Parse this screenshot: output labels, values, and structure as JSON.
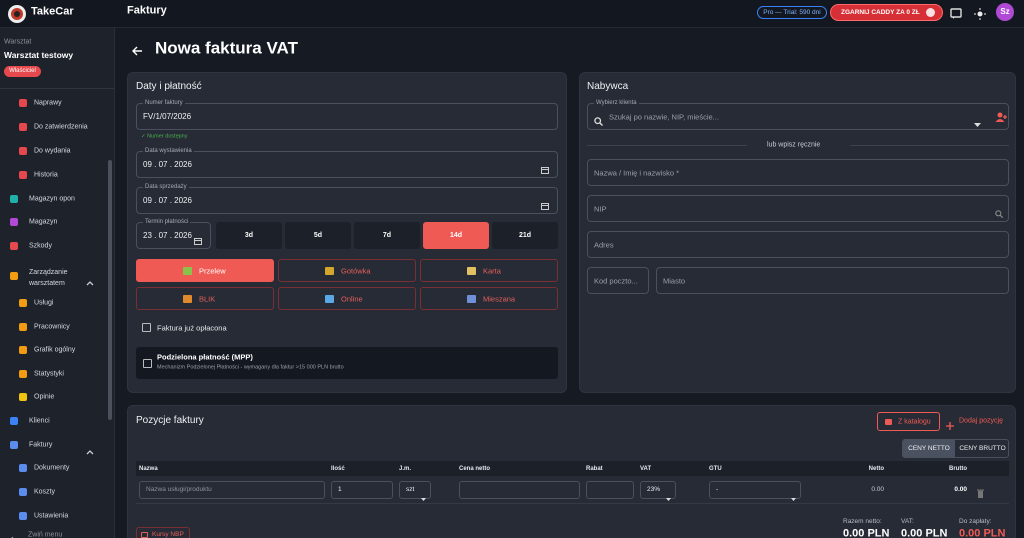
{
  "header": {
    "brand": "TakeCar",
    "page": "Faktury",
    "trial": "Pro — Trial: 590 dni",
    "promo": "ZGARNIJ CADDY ZA 0 ZŁ",
    "avatar": "Sz"
  },
  "sidebar": {
    "workshop_label": "Warsztat",
    "workshop_name": "Warsztat testowy",
    "role": "Właściciel",
    "items": [
      {
        "label": "Naprawy",
        "level": 2
      },
      {
        "label": "Do zatwierdzenia",
        "level": 2
      },
      {
        "label": "Do wydania",
        "level": 2
      },
      {
        "label": "Historia",
        "level": 2
      },
      {
        "label": "Magazyn opon",
        "level": 1
      },
      {
        "label": "Magazyn",
        "level": 1
      },
      {
        "label": "Szkody",
        "level": 1
      },
      {
        "label": "Zarządzanie warsztatem",
        "level": 1,
        "expanded": true
      },
      {
        "label": "Usługi",
        "level": 2
      },
      {
        "label": "Pracownicy",
        "level": 2
      },
      {
        "label": "Grafik ogólny",
        "level": 2
      },
      {
        "label": "Statystyki",
        "level": 2
      },
      {
        "label": "Opinie",
        "level": 2
      },
      {
        "label": "Klienci",
        "level": 1
      },
      {
        "label": "Faktury",
        "level": 1,
        "expanded": true
      },
      {
        "label": "Dokumenty",
        "level": 2
      },
      {
        "label": "Koszty",
        "level": 2
      },
      {
        "label": "Ustawienia",
        "level": 2
      }
    ],
    "collapse": "Zwiń menu"
  },
  "title": "Nowa faktura VAT",
  "dates": {
    "title": "Daty i płatność",
    "number_label": "Numer faktury",
    "number": "FV/1/07/2026",
    "number_status": "✓ Numer dostępny",
    "issue_label": "Data wystawienia",
    "issue_date": "09 . 07 . 2026",
    "sale_label": "Data sprzedaży",
    "sale_date": "09 . 07 . 2026",
    "due_label": "Termin płatności",
    "due_date": "23 . 07 . 2026",
    "period_options": [
      "3d",
      "5d",
      "7d",
      "14d",
      "21d"
    ],
    "period_selected": 3,
    "payment_methods": [
      "Przelew",
      "Gotówka",
      "Karta",
      "BLIK",
      "Online",
      "Mieszana"
    ],
    "payment_selected": 0,
    "paid_label": "Faktura już opłacona",
    "mpp_title": "Podzielona płatność (MPP)",
    "mpp_text": "Mechanizm Podzielonej Płatności - wymagany dla faktur >15 000 PLN brutto"
  },
  "buyer": {
    "title": "Nabywca",
    "select_label": "Wybierz klienta",
    "search_placeholder": "Szukaj po nazwie, NIP, mieście...",
    "manual": "lub wpisz ręcznie",
    "name": "Nazwa / Imię i nazwisko *",
    "nip": "NIP",
    "address": "Adres",
    "postal": "Kod poczto...",
    "city": "Miasto"
  },
  "items": {
    "title": "Pozycje faktury",
    "catalog": "Z katalogu",
    "add": "Dodaj pozycję",
    "price_modes": [
      "CENY NETTO",
      "CENY BRUTTO"
    ],
    "price_mode_selected": 0,
    "columns": [
      "Nazwa",
      "Ilość",
      "J.m.",
      "Cena netto",
      "Rabat",
      "VAT",
      "GTU",
      "Netto",
      "Brutto"
    ],
    "row": {
      "name_placeholder": "Nazwa usługi/produktu",
      "qty": "1",
      "unit": "szt",
      "vat": "23%",
      "gtu": "-",
      "net": "0.00",
      "gross": "0.00"
    },
    "nbp": "Kursy NBP",
    "totals": [
      {
        "label": "Razem netto:",
        "value": "0.00 PLN"
      },
      {
        "label": "VAT:",
        "value": "0.00 PLN"
      },
      {
        "label": "Do zapłaty:",
        "value": "0.00 PLN"
      }
    ]
  }
}
